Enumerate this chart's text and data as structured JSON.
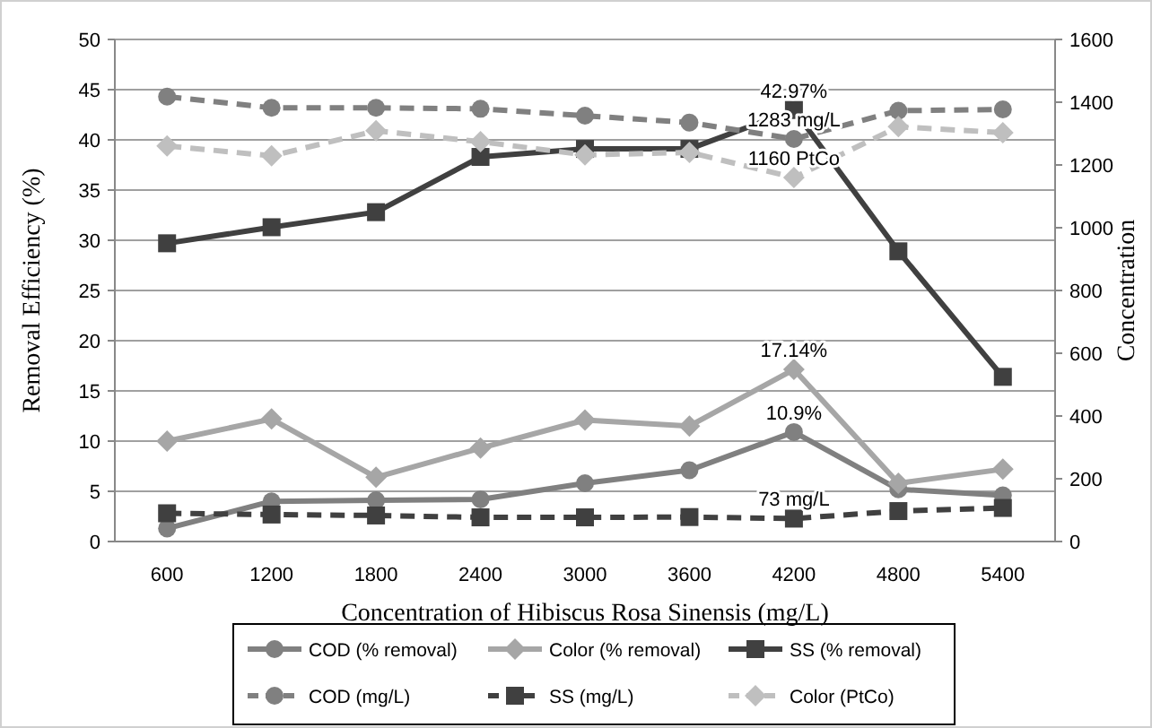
{
  "chart_data": {
    "type": "line",
    "xlabel": "Concentration of Hibiscus Rosa Sinensis (mg/L)",
    "ylabel": "Removal Efficiency (%)",
    "y2label": "Concentration",
    "categories": [
      "600",
      "1200",
      "1800",
      "2400",
      "3000",
      "3600",
      "4200",
      "4800",
      "5400"
    ],
    "series": [
      {
        "name": "COD (% removal)",
        "color": "#808080",
        "marker": "circle",
        "line_style": "solid",
        "values": [
          1.3,
          4.0,
          4.1,
          4.2,
          5.8,
          7.1,
          10.9,
          5.2,
          4.6
        ]
      },
      {
        "name": "Color (% removal)",
        "color": "#a6a6a6",
        "marker": "diamond",
        "line_style": "solid",
        "values": [
          10.0,
          12.2,
          6.4,
          9.3,
          12.1,
          11.5,
          17.14,
          5.8,
          7.2
        ]
      },
      {
        "name": "SS (% removal)",
        "color": "#404040",
        "marker": "square",
        "line_style": "solid",
        "values": [
          29.7,
          31.3,
          32.8,
          38.3,
          39.1,
          39.1,
          42.97,
          28.9,
          16.4
        ]
      },
      {
        "name": "COD (mg/L)",
        "color": "#808080",
        "marker": "circle",
        "line_style": "dashed",
        "axis": "y2",
        "values": [
          1418,
          1382,
          1382,
          1379,
          1357,
          1335,
          1283,
          1373,
          1377
        ]
      },
      {
        "name": "SS (mg/L)",
        "color": "#404040",
        "marker": "square",
        "line_style": "dashed",
        "axis": "y2",
        "values": [
          90,
          86,
          83,
          77,
          77,
          78,
          73,
          97,
          107
        ]
      },
      {
        "name": "Color (PtCo)",
        "color": "#bfbfbf",
        "marker": "diamond",
        "line_style": "dashed",
        "axis": "y2",
        "values": [
          1261,
          1229,
          1309,
          1274,
          1232,
          1240,
          1160,
          1322,
          1303
        ]
      }
    ],
    "ylim": [
      0,
      50
    ],
    "yticks": [
      0,
      5,
      10,
      15,
      20,
      25,
      30,
      35,
      40,
      45,
      50
    ],
    "y2lim": [
      0,
      1600
    ],
    "y2ticks": [
      0,
      200,
      400,
      600,
      800,
      1000,
      1200,
      1400,
      1600
    ],
    "grid": "y",
    "legend": "bottom",
    "annotations": [
      {
        "text": "42.97%",
        "x": "4200",
        "y": 42.97
      },
      {
        "text": "1283 mg/L",
        "x": "4200",
        "y": 40.1
      },
      {
        "text": "1160 PtCo",
        "x": "4200",
        "y": 36.25
      },
      {
        "text": "17.14%",
        "x": "4200",
        "y": 17.14
      },
      {
        "text": "10.9%",
        "x": "4200",
        "y": 10.9
      },
      {
        "text": "73 mg/L",
        "x": "4200",
        "y": 2.3
      }
    ]
  }
}
